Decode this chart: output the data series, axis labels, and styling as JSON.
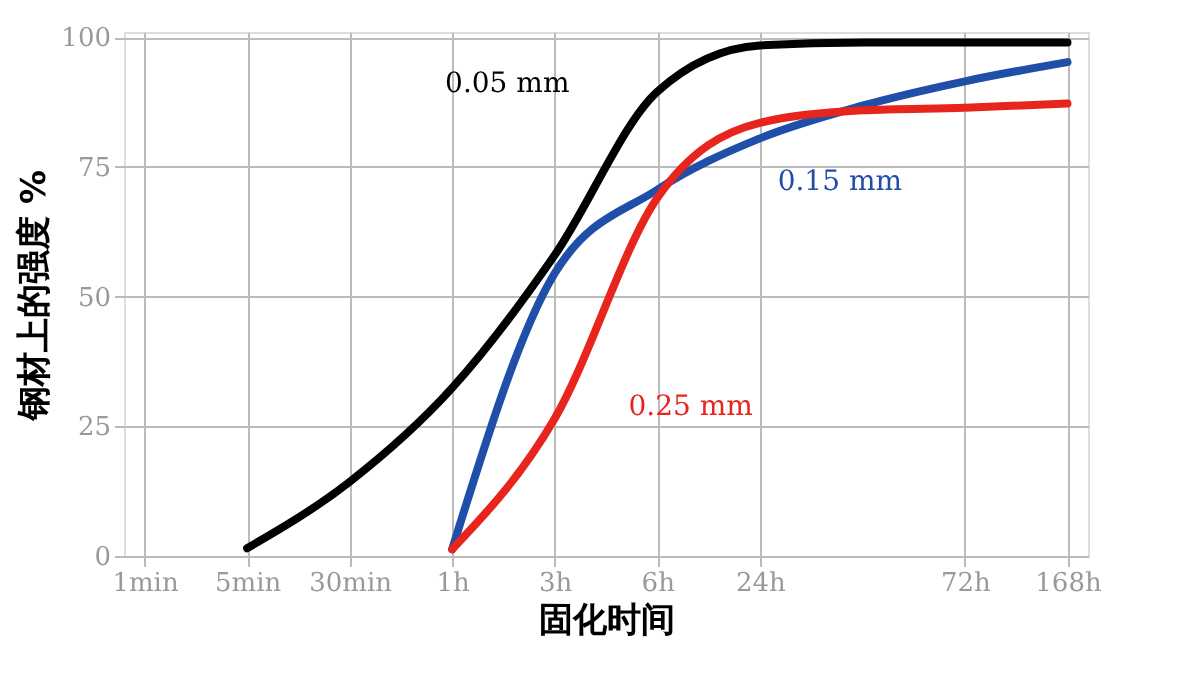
{
  "chart_data": {
    "type": "line",
    "xlabel": "固化时间",
    "ylabel": "钢材上的强度 %",
    "categories": [
      "1min",
      "5min",
      "30min",
      "1h",
      "3h",
      "6h",
      "24h",
      null,
      "72h",
      "168h"
    ],
    "ylim": [
      0,
      101
    ],
    "yticks": [
      0,
      25,
      50,
      75,
      100
    ],
    "grid": true,
    "line_style": "solid",
    "series": [
      {
        "name": "0.05 mm",
        "color": "#000000",
        "values": [
          null,
          1.5,
          14.3,
          32.4,
          58,
          89.5,
          98.4,
          99,
          99,
          99
        ]
      },
      {
        "name": "0.15 mm",
        "color": "#1f4fa8",
        "values": [
          null,
          null,
          null,
          1.3,
          54.5,
          70.6,
          80.5,
          86.8,
          91.5,
          95.2
        ]
      },
      {
        "name": "0.25 mm",
        "color": "#e8251d",
        "values": [
          null,
          null,
          null,
          1.3,
          26.5,
          69,
          83.5,
          85.9,
          86.4,
          87.2
        ]
      }
    ]
  }
}
